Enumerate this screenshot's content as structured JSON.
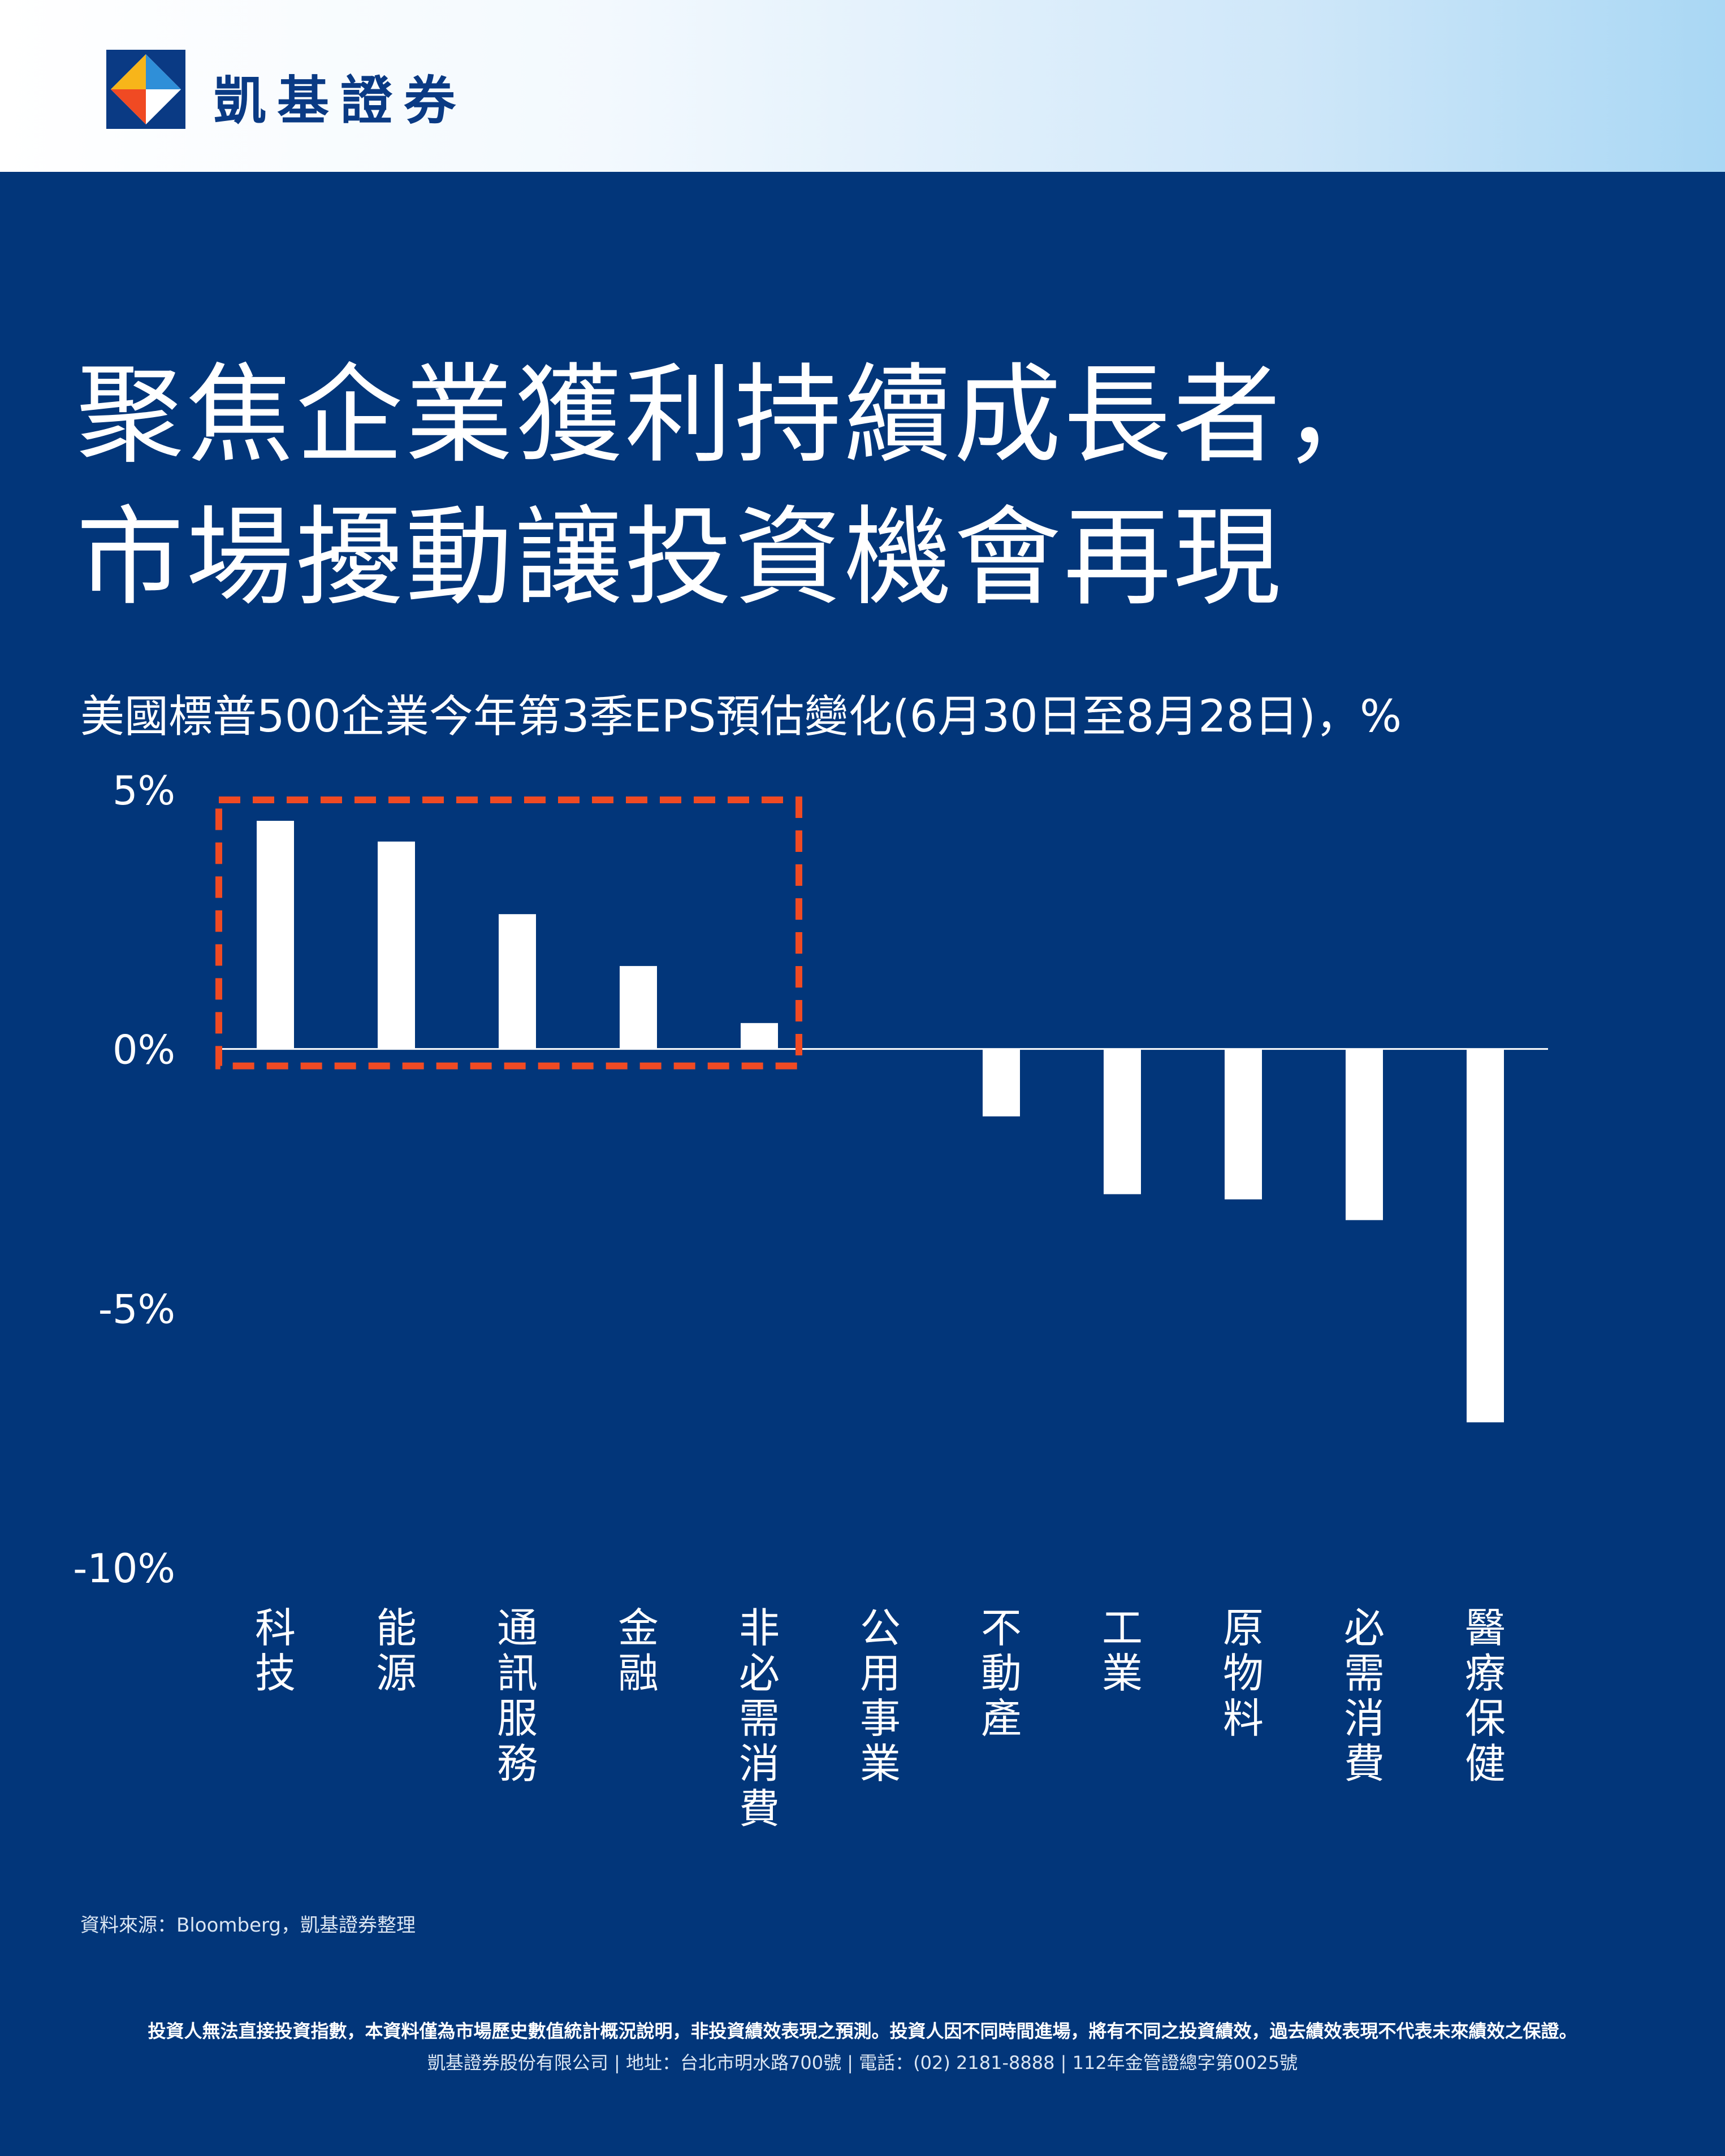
{
  "brand": {
    "name": "凱基證券",
    "colors": {
      "navy": "#02367a",
      "orange": "#f04a23",
      "yellow": "#f7b51a",
      "logo_blue": "#0a3a84"
    }
  },
  "headline": {
    "line1": "聚焦企業獲利持續成長者，",
    "line2": "市場擾動讓投資機會再現"
  },
  "chart_data": {
    "type": "bar",
    "title": "美國標普500企業今年第3季EPS預估變化(6月30日至8月28日)，%",
    "categories": [
      "科技",
      "能源",
      "通訊服務",
      "金融",
      "非必需消費",
      "公用事業",
      "不動產",
      "工業",
      "原物料",
      "必需消費",
      "醫療保健"
    ],
    "values": [
      4.4,
      4.0,
      2.6,
      1.6,
      0.5,
      0.0,
      -1.3,
      -2.8,
      -2.9,
      -3.3,
      -7.2
    ],
    "ylim": [
      -10,
      5
    ],
    "yticks": [
      5,
      0,
      -5,
      -10
    ],
    "ytick_labels": [
      "5%",
      "0%",
      "-5%",
      "-10%"
    ],
    "xlabel": "",
    "ylabel": "",
    "grid": false,
    "highlight": {
      "categories": [
        "科技",
        "能源",
        "通訊服務",
        "金融",
        "非必需消費"
      ],
      "style": "dashed-box",
      "color": "#f04a23"
    },
    "bar_color": "#ffffff"
  },
  "footer": {
    "source": "資料來源：Bloomberg，凱基證券整理",
    "disclaimer": "投資人無法直接投資指數，本資料僅為市場歷史數值統計概況說明，非投資績效表現之預測。投資人因不同時間進場，將有不同之投資績效，過去績效表現不代表未來績效之保證。",
    "company": "凱基證券股份有限公司 | 地址：台北市明水路700號 | 電話：(02) 2181-8888 | 112年金管證總字第0025號"
  }
}
